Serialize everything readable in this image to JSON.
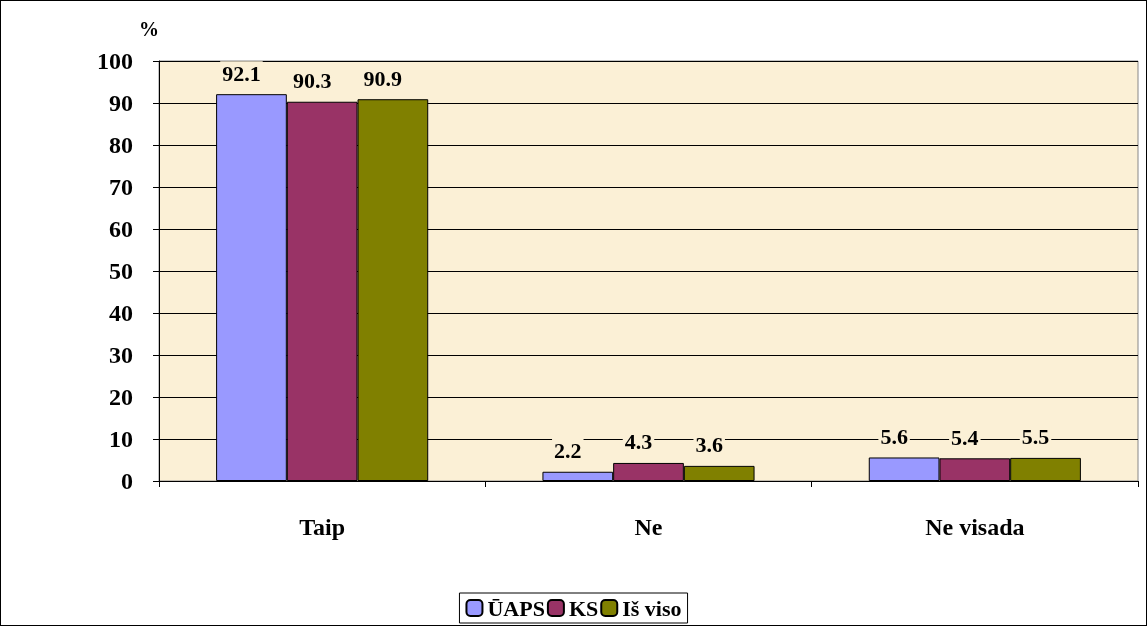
{
  "chart_data": {
    "type": "bar",
    "ylabel": "%",
    "categories": [
      "Taip",
      "Ne",
      "Ne visada"
    ],
    "series": [
      {
        "name": "ŪAPS",
        "color": "#9999ff",
        "values": [
          92.1,
          2.2,
          5.6
        ]
      },
      {
        "name": "KS",
        "color": "#993366",
        "values": [
          90.3,
          4.3,
          5.4
        ]
      },
      {
        "name": "Iš viso",
        "color": "#808000",
        "values": [
          90.9,
          3.6,
          5.5
        ]
      }
    ],
    "ylim": [
      0,
      100
    ],
    "yticks": [
      0,
      10,
      20,
      30,
      40,
      50,
      60,
      70,
      80,
      90,
      100
    ],
    "grid": "y",
    "legend": "bottom",
    "data_labels": true
  }
}
